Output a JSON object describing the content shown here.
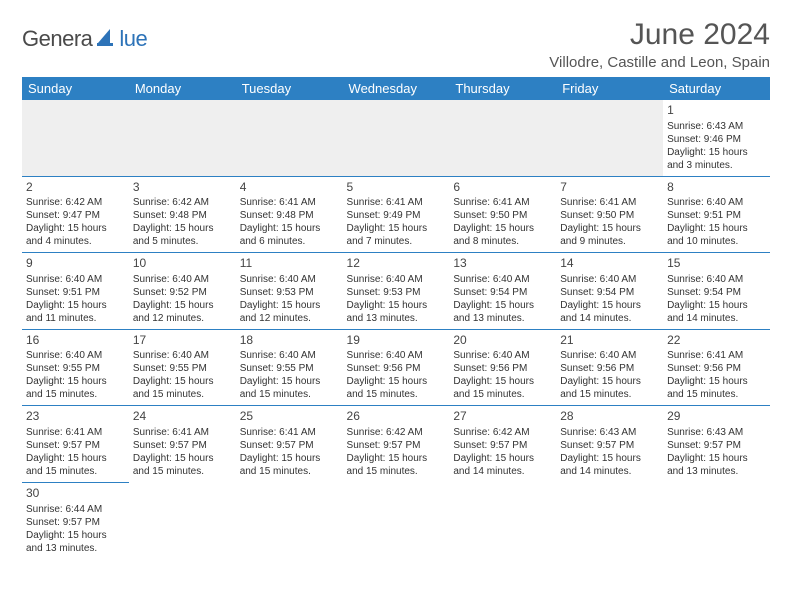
{
  "logo": {
    "text_main": "Genera",
    "text_sub": "lue",
    "main_color": "#4a4a4a",
    "sub_color": "#2d73b8",
    "sail_color": "#2d73b8"
  },
  "title": {
    "month": "June 2024",
    "location": "Villodre, Castille and Leon, Spain"
  },
  "colors": {
    "header_bg": "#2d80c3",
    "header_text": "#ffffff",
    "cell_border": "#2d80c3",
    "blank_bg": "#efefef",
    "text": "#333333",
    "title_text": "#555555"
  },
  "day_headers": [
    "Sunday",
    "Monday",
    "Tuesday",
    "Wednesday",
    "Thursday",
    "Friday",
    "Saturday"
  ],
  "weeks": [
    [
      null,
      null,
      null,
      null,
      null,
      null,
      {
        "n": "1",
        "sr": "Sunrise: 6:43 AM",
        "ss": "Sunset: 9:46 PM",
        "d1": "Daylight: 15 hours",
        "d2": "and 3 minutes."
      }
    ],
    [
      {
        "n": "2",
        "sr": "Sunrise: 6:42 AM",
        "ss": "Sunset: 9:47 PM",
        "d1": "Daylight: 15 hours",
        "d2": "and 4 minutes."
      },
      {
        "n": "3",
        "sr": "Sunrise: 6:42 AM",
        "ss": "Sunset: 9:48 PM",
        "d1": "Daylight: 15 hours",
        "d2": "and 5 minutes."
      },
      {
        "n": "4",
        "sr": "Sunrise: 6:41 AM",
        "ss": "Sunset: 9:48 PM",
        "d1": "Daylight: 15 hours",
        "d2": "and 6 minutes."
      },
      {
        "n": "5",
        "sr": "Sunrise: 6:41 AM",
        "ss": "Sunset: 9:49 PM",
        "d1": "Daylight: 15 hours",
        "d2": "and 7 minutes."
      },
      {
        "n": "6",
        "sr": "Sunrise: 6:41 AM",
        "ss": "Sunset: 9:50 PM",
        "d1": "Daylight: 15 hours",
        "d2": "and 8 minutes."
      },
      {
        "n": "7",
        "sr": "Sunrise: 6:41 AM",
        "ss": "Sunset: 9:50 PM",
        "d1": "Daylight: 15 hours",
        "d2": "and 9 minutes."
      },
      {
        "n": "8",
        "sr": "Sunrise: 6:40 AM",
        "ss": "Sunset: 9:51 PM",
        "d1": "Daylight: 15 hours",
        "d2": "and 10 minutes."
      }
    ],
    [
      {
        "n": "9",
        "sr": "Sunrise: 6:40 AM",
        "ss": "Sunset: 9:51 PM",
        "d1": "Daylight: 15 hours",
        "d2": "and 11 minutes."
      },
      {
        "n": "10",
        "sr": "Sunrise: 6:40 AM",
        "ss": "Sunset: 9:52 PM",
        "d1": "Daylight: 15 hours",
        "d2": "and 12 minutes."
      },
      {
        "n": "11",
        "sr": "Sunrise: 6:40 AM",
        "ss": "Sunset: 9:53 PM",
        "d1": "Daylight: 15 hours",
        "d2": "and 12 minutes."
      },
      {
        "n": "12",
        "sr": "Sunrise: 6:40 AM",
        "ss": "Sunset: 9:53 PM",
        "d1": "Daylight: 15 hours",
        "d2": "and 13 minutes."
      },
      {
        "n": "13",
        "sr": "Sunrise: 6:40 AM",
        "ss": "Sunset: 9:54 PM",
        "d1": "Daylight: 15 hours",
        "d2": "and 13 minutes."
      },
      {
        "n": "14",
        "sr": "Sunrise: 6:40 AM",
        "ss": "Sunset: 9:54 PM",
        "d1": "Daylight: 15 hours",
        "d2": "and 14 minutes."
      },
      {
        "n": "15",
        "sr": "Sunrise: 6:40 AM",
        "ss": "Sunset: 9:54 PM",
        "d1": "Daylight: 15 hours",
        "d2": "and 14 minutes."
      }
    ],
    [
      {
        "n": "16",
        "sr": "Sunrise: 6:40 AM",
        "ss": "Sunset: 9:55 PM",
        "d1": "Daylight: 15 hours",
        "d2": "and 15 minutes."
      },
      {
        "n": "17",
        "sr": "Sunrise: 6:40 AM",
        "ss": "Sunset: 9:55 PM",
        "d1": "Daylight: 15 hours",
        "d2": "and 15 minutes."
      },
      {
        "n": "18",
        "sr": "Sunrise: 6:40 AM",
        "ss": "Sunset: 9:55 PM",
        "d1": "Daylight: 15 hours",
        "d2": "and 15 minutes."
      },
      {
        "n": "19",
        "sr": "Sunrise: 6:40 AM",
        "ss": "Sunset: 9:56 PM",
        "d1": "Daylight: 15 hours",
        "d2": "and 15 minutes."
      },
      {
        "n": "20",
        "sr": "Sunrise: 6:40 AM",
        "ss": "Sunset: 9:56 PM",
        "d1": "Daylight: 15 hours",
        "d2": "and 15 minutes."
      },
      {
        "n": "21",
        "sr": "Sunrise: 6:40 AM",
        "ss": "Sunset: 9:56 PM",
        "d1": "Daylight: 15 hours",
        "d2": "and 15 minutes."
      },
      {
        "n": "22",
        "sr": "Sunrise: 6:41 AM",
        "ss": "Sunset: 9:56 PM",
        "d1": "Daylight: 15 hours",
        "d2": "and 15 minutes."
      }
    ],
    [
      {
        "n": "23",
        "sr": "Sunrise: 6:41 AM",
        "ss": "Sunset: 9:57 PM",
        "d1": "Daylight: 15 hours",
        "d2": "and 15 minutes."
      },
      {
        "n": "24",
        "sr": "Sunrise: 6:41 AM",
        "ss": "Sunset: 9:57 PM",
        "d1": "Daylight: 15 hours",
        "d2": "and 15 minutes."
      },
      {
        "n": "25",
        "sr": "Sunrise: 6:41 AM",
        "ss": "Sunset: 9:57 PM",
        "d1": "Daylight: 15 hours",
        "d2": "and 15 minutes."
      },
      {
        "n": "26",
        "sr": "Sunrise: 6:42 AM",
        "ss": "Sunset: 9:57 PM",
        "d1": "Daylight: 15 hours",
        "d2": "and 15 minutes."
      },
      {
        "n": "27",
        "sr": "Sunrise: 6:42 AM",
        "ss": "Sunset: 9:57 PM",
        "d1": "Daylight: 15 hours",
        "d2": "and 14 minutes."
      },
      {
        "n": "28",
        "sr": "Sunrise: 6:43 AM",
        "ss": "Sunset: 9:57 PM",
        "d1": "Daylight: 15 hours",
        "d2": "and 14 minutes."
      },
      {
        "n": "29",
        "sr": "Sunrise: 6:43 AM",
        "ss": "Sunset: 9:57 PM",
        "d1": "Daylight: 15 hours",
        "d2": "and 13 minutes."
      }
    ],
    [
      {
        "n": "30",
        "sr": "Sunrise: 6:44 AM",
        "ss": "Sunset: 9:57 PM",
        "d1": "Daylight: 15 hours",
        "d2": "and 13 minutes."
      },
      null,
      null,
      null,
      null,
      null,
      null
    ]
  ]
}
